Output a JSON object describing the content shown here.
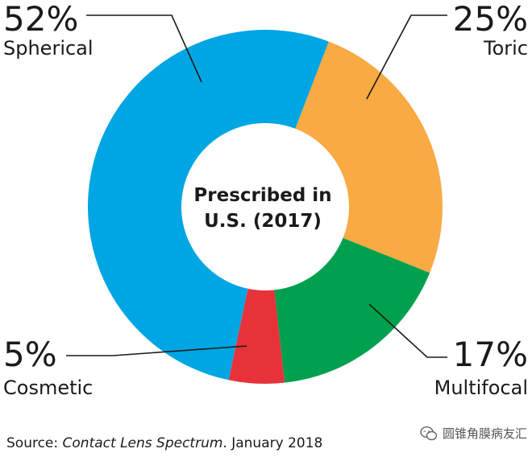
{
  "chart_data": {
    "type": "pie",
    "variant": "donut",
    "center_label": [
      "Prescribed in",
      "U.S. (2017)"
    ],
    "slices": [
      {
        "label": "Spherical",
        "value": 52,
        "value_label": "52%",
        "color": "#00a5e3"
      },
      {
        "label": "Toric",
        "value": 25,
        "value_label": "25%",
        "color": "#f9aa42"
      },
      {
        "label": "Multifocal",
        "value": 17,
        "value_label": "17%",
        "color": "#00a04f"
      },
      {
        "label": "Cosmetic",
        "value": 5,
        "value_label": "5%",
        "color": "#e8323a"
      }
    ]
  },
  "footer": {
    "prefix": "Source: ",
    "title": "Contact Lens Spectrum",
    "suffix": ". January 2018"
  },
  "watermark": {
    "text": "圆锥角膜病友汇",
    "icon": "wechat-icon"
  }
}
